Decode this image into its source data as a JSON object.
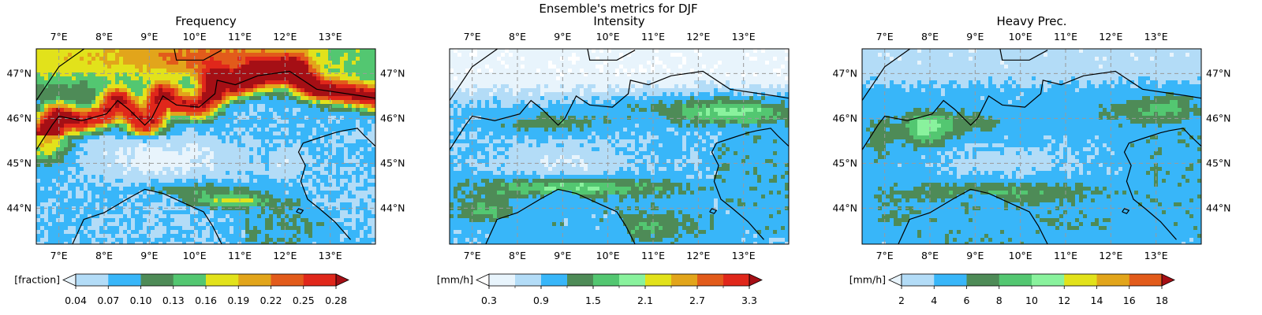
{
  "suptitle": "Ensemble's metrics for DJF",
  "colors": {
    "frequency": [
      "#b3dcf7",
      "#38b6f9",
      "#4e8b57",
      "#53c771",
      "#e2e21b",
      "#e2a51b",
      "#e25b1b",
      "#e0271b"
    ],
    "intensity": [
      "#e8f4fc",
      "#b3dcf7",
      "#38b6f9",
      "#4e8b57",
      "#53c771",
      "#89f29d",
      "#e2e21b",
      "#e2a51b",
      "#e25b1b",
      "#e0271b"
    ],
    "heavy": [
      "#b3dcf7",
      "#38b6f9",
      "#4e8b57",
      "#53c771",
      "#89f29d",
      "#e2e21b",
      "#e2a51b",
      "#e25b1b"
    ],
    "under_frequency": "#e8f4fc",
    "under_intensity": "#ffffff",
    "under_heavy": "#e8f4fc",
    "over": "#a50f15",
    "coastline": "#000000",
    "gridline": "#9a9a9a"
  },
  "chart_data": [
    {
      "type": "heatmap",
      "map_type": "geographic map of northern Italy / Alps with coastlines and borders",
      "title": "Frequency",
      "x_ticks": [
        "7°E",
        "8°E",
        "9°E",
        "10°E",
        "11°E",
        "12°E",
        "13°E"
      ],
      "y_ticks": [
        "47°N",
        "46°N",
        "45°N",
        "44°N"
      ],
      "lon_range": [
        6.5,
        14.0
      ],
      "lat_range": [
        43.2,
        47.55
      ],
      "grid": true,
      "colorbar": {
        "label": "[fraction]",
        "ticks": [
          "0.04",
          "0.07",
          "0.10",
          "0.13",
          "0.16",
          "0.19",
          "0.22",
          "0.25",
          "0.28"
        ],
        "levels": [
          0.04,
          0.07,
          0.1,
          0.13,
          0.16,
          0.19,
          0.22,
          0.25,
          0.28
        ],
        "extend": "both"
      }
    },
    {
      "type": "heatmap",
      "map_type": "geographic map of northern Italy / Alps with coastlines and borders",
      "title": "Intensity",
      "x_ticks": [
        "7°E",
        "8°E",
        "9°E",
        "10°E",
        "11°E",
        "12°E",
        "13°E"
      ],
      "y_ticks": [
        "47°N",
        "46°N",
        "45°N",
        "44°N"
      ],
      "lon_range": [
        6.5,
        14.0
      ],
      "lat_range": [
        43.2,
        47.55
      ],
      "grid": true,
      "colorbar": {
        "label": "[mm/h]",
        "ticks": [
          "0.3",
          "0.9",
          "1.5",
          "2.1",
          "2.7",
          "3.3"
        ],
        "levels": [
          0.3,
          0.6,
          0.9,
          1.2,
          1.5,
          1.8,
          2.1,
          2.4,
          2.7,
          3.0,
          3.3
        ],
        "extend": "both"
      }
    },
    {
      "type": "heatmap",
      "map_type": "geographic map of northern Italy / Alps with coastlines and borders",
      "title": "Heavy Prec.",
      "x_ticks": [
        "7°E",
        "8°E",
        "9°E",
        "10°E",
        "11°E",
        "12°E",
        "13°E"
      ],
      "y_ticks": [
        "47°N",
        "46°N",
        "45°N",
        "44°N"
      ],
      "lon_range": [
        6.5,
        14.0
      ],
      "lat_range": [
        43.2,
        47.55
      ],
      "grid": true,
      "colorbar": {
        "label": "[mm/h]",
        "ticks": [
          "2",
          "4",
          "6",
          "8",
          "10",
          "12",
          "14",
          "16",
          "18"
        ],
        "levels": [
          2,
          4,
          6,
          8,
          10,
          12,
          14,
          16,
          18
        ],
        "extend": "both"
      }
    }
  ]
}
